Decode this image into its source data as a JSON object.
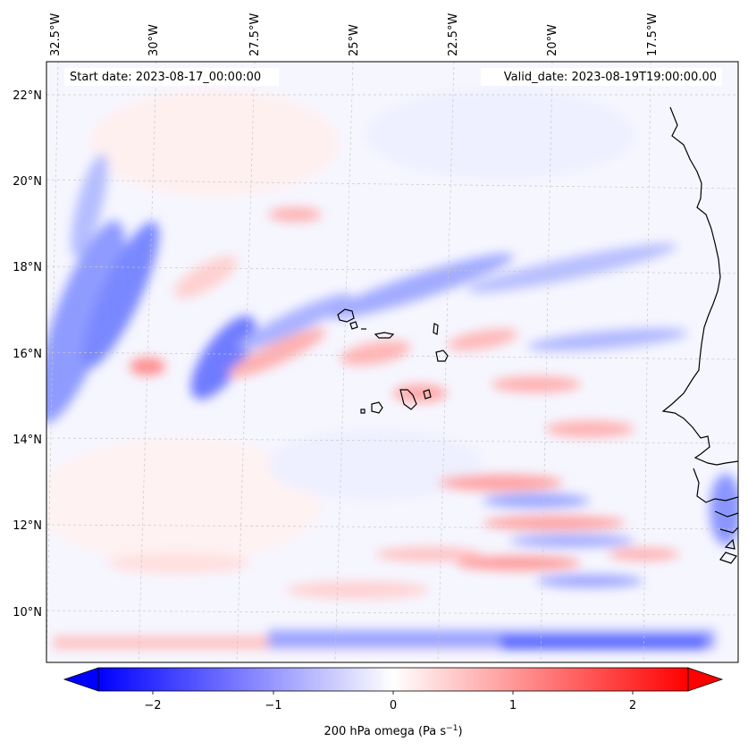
{
  "map": {
    "start_date_label": "Start date: 2023-08-17_00:00:00",
    "valid_date_label": "Valid_date: 2023-08-19T19:00:00.00",
    "lon_ticks": [
      "32.5°W",
      "30°W",
      "27.5°W",
      "25°W",
      "22.5°W",
      "20°W",
      "17.5°W"
    ],
    "lat_ticks": [
      "22°N",
      "20°N",
      "18°N",
      "16°N",
      "14°N",
      "12°N",
      "10°N"
    ],
    "colors": {
      "negative": "#0000ff",
      "zero": "#ffffff",
      "positive": "#ff0000",
      "coastline": "#000000",
      "gridline": "#c8c8c8"
    }
  },
  "colorbar": {
    "ticks": [
      "−2",
      "−1",
      "0",
      "1",
      "2"
    ],
    "label_main": "200 hPa omega (Pa s",
    "label_sup": "−1",
    "label_end": ")"
  }
}
